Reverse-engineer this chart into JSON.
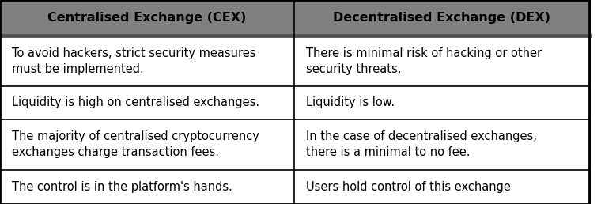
{
  "headers": [
    "Centralised Exchange (CEX)",
    "Decentralised Exchange (DEX)"
  ],
  "rows": [
    [
      "To avoid hackers, strict security measures\nmust be implemented.",
      "There is minimal risk of hacking or other\nsecurity threats."
    ],
    [
      "Liquidity is high on centralised exchanges.",
      "Liquidity is low."
    ],
    [
      "The majority of centralised cryptocurrency\nexchanges charge transaction fees.",
      "In the case of decentralised exchanges,\nthere is a minimal to no fee."
    ],
    [
      "The control is in the platform's hands.",
      "Users hold control of this exchange"
    ]
  ],
  "header_bg": "#808080",
  "header_text_color": "#000000",
  "cell_bg": "#ffffff",
  "cell_text_color": "#000000",
  "border_color": "#000000",
  "outer_border_color": "#000000",
  "header_font_size": 11.5,
  "cell_font_size": 10.5,
  "fig_width": 7.6,
  "fig_height": 2.58,
  "dpi": 100
}
